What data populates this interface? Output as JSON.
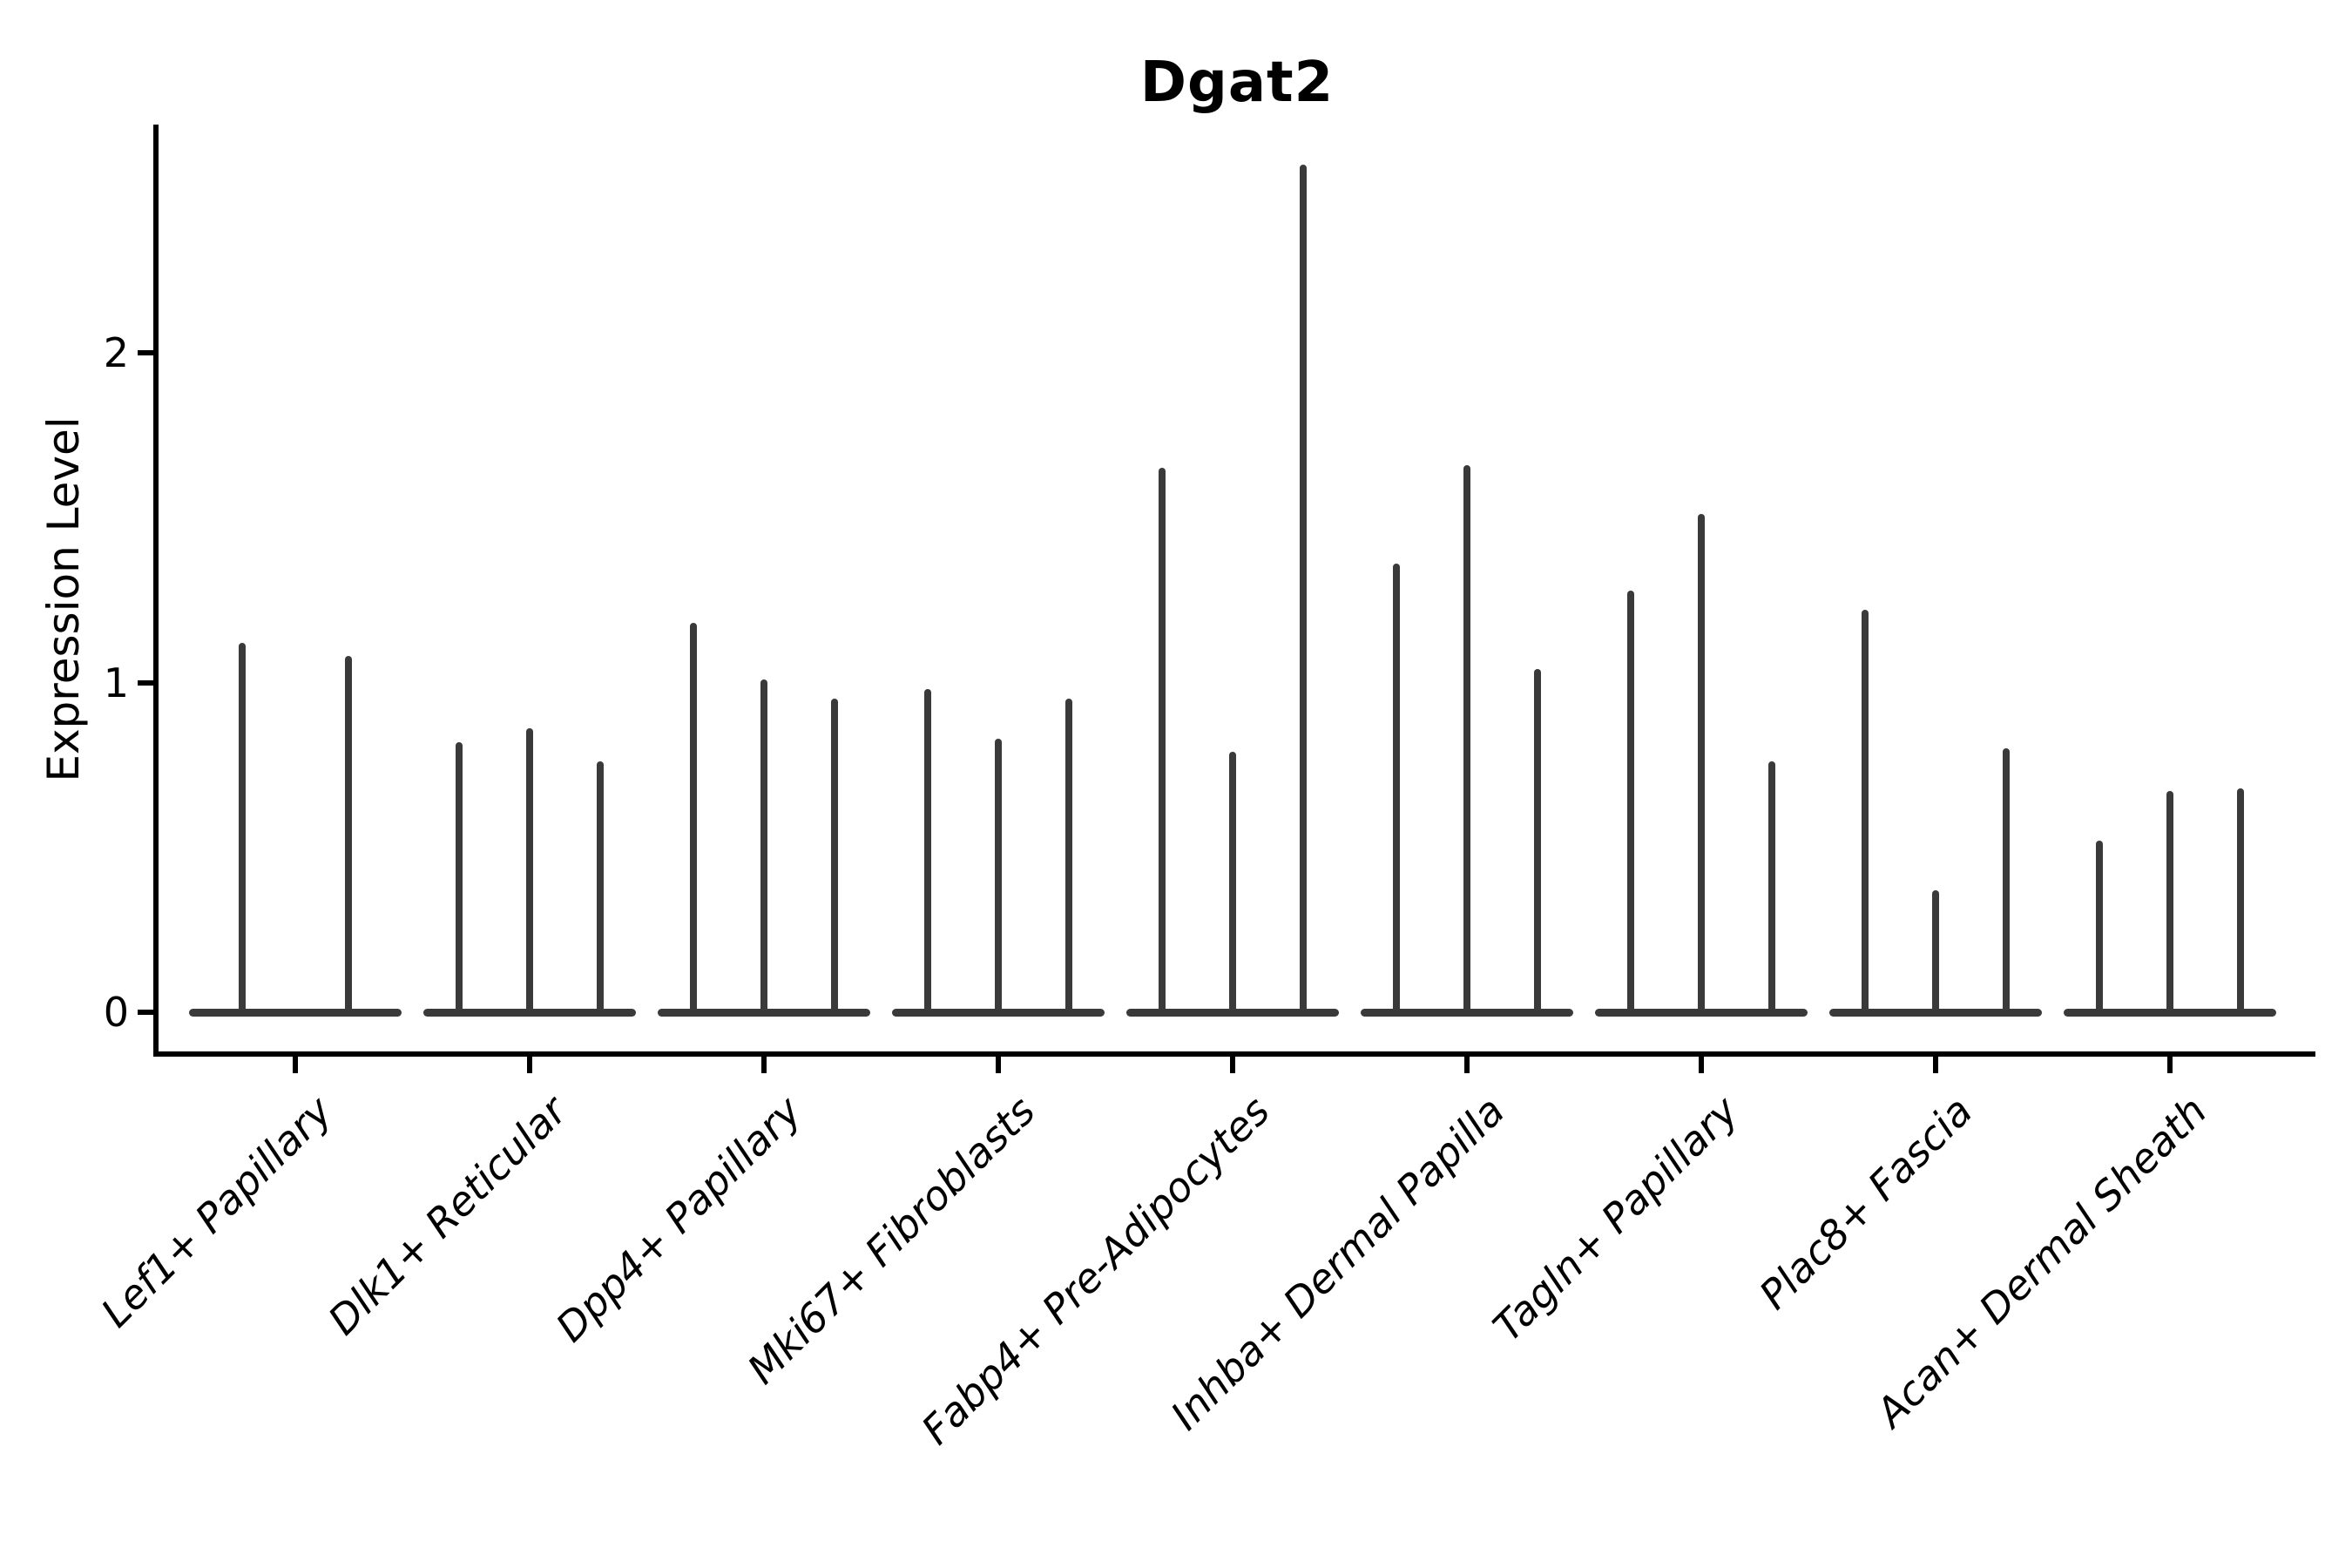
{
  "chart_data": {
    "type": "violin",
    "title": "Dgat2",
    "xlabel": "",
    "ylabel": "Expression Level",
    "yticks": [
      0,
      1,
      2
    ],
    "ylim": [
      -0.13,
      2.69
    ],
    "grid": false,
    "legend": "none",
    "description": "Needle-thin violin plot of Dgat2 expression; each cell-type category contains 2-3 sub-violins (flat density blob at 0 with a thin spike up to the maximum expression value).",
    "categories": [
      "Lef1+ Papillary",
      "Dlk1+ Reticular",
      "Dpp4+ Papillary",
      "Mki67+ Fibroblasts",
      "Fabp4+ Pre-Adipocytes",
      "Inhba+ Dermal Papilla",
      "Tagln+ Papillary",
      "Plac8+ Fascia",
      "Acan+ Dermal Sheath"
    ],
    "violins": [
      {
        "category": "Lef1+ Papillary",
        "spike_maxima": [
          1.12,
          1.08
        ]
      },
      {
        "category": "Dlk1+ Reticular",
        "spike_maxima": [
          0.82,
          0.86,
          0.76
        ]
      },
      {
        "category": "Dpp4+ Papillary",
        "spike_maxima": [
          1.18,
          1.01,
          0.95
        ]
      },
      {
        "category": "Mki67+ Fibroblasts",
        "spike_maxima": [
          0.98,
          0.83,
          0.95
        ]
      },
      {
        "category": "Fabp4+ Pre-Adipocytes",
        "spike_maxima": [
          1.65,
          0.79,
          2.57
        ]
      },
      {
        "category": "Inhba+ Dermal Papilla",
        "spike_maxima": [
          1.36,
          1.66,
          1.04
        ]
      },
      {
        "category": "Tagln+ Papillary",
        "spike_maxima": [
          1.28,
          1.51,
          0.76
        ]
      },
      {
        "category": "Plac8+ Fascia",
        "spike_maxima": [
          1.22,
          0.37,
          0.8
        ]
      },
      {
        "category": "Acan+ Dermal Sheath",
        "spike_maxima": [
          0.52,
          0.67,
          0.68
        ]
      }
    ]
  }
}
